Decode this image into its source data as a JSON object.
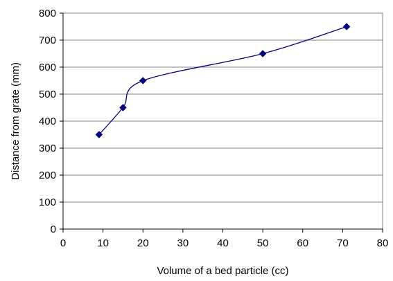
{
  "chart_data": {
    "type": "scatter",
    "title": "",
    "xlabel": "Volume of a bed particle (cc)",
    "ylabel": "Distance from grate (mm)",
    "xlim": [
      0,
      80
    ],
    "ylim": [
      0,
      800
    ],
    "xticks": [
      0,
      10,
      20,
      30,
      40,
      50,
      60,
      70,
      80
    ],
    "yticks": [
      0,
      100,
      200,
      300,
      400,
      500,
      600,
      700,
      800
    ],
    "grid": "horizontal",
    "legend": "none",
    "series": [
      {
        "x": [
          9,
          15,
          20,
          50,
          71
        ],
        "y": [
          350,
          450,
          550,
          650,
          750
        ],
        "marker": "diamond",
        "line": "smoothed",
        "color": "#000080"
      }
    ]
  }
}
